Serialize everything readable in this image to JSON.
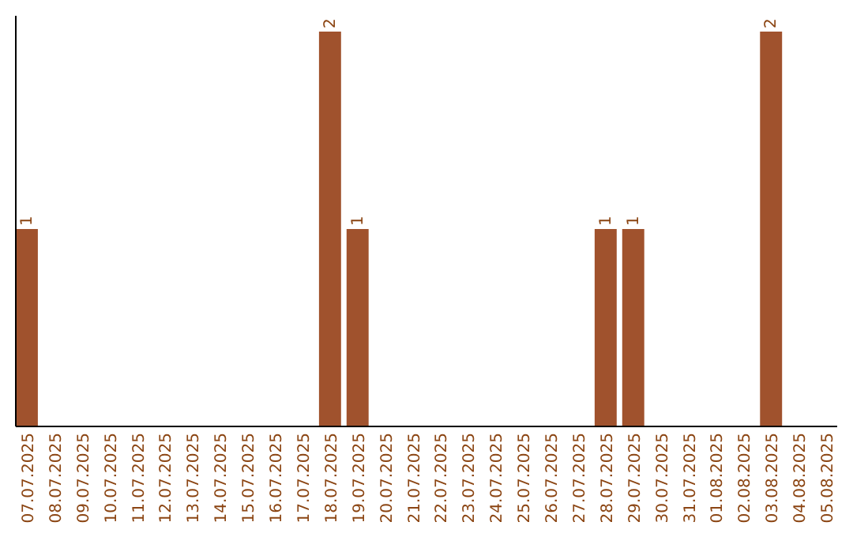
{
  "chart_data": {
    "type": "bar",
    "categories": [
      "07.07.2025",
      "08.07.2025",
      "09.07.2025",
      "10.07.2025",
      "11.07.2025",
      "12.07.2025",
      "13.07.2025",
      "14.07.2025",
      "15.07.2025",
      "16.07.2025",
      "17.07.2025",
      "18.07.2025",
      "19.07.2025",
      "20.07.2025",
      "21.07.2025",
      "22.07.2025",
      "23.07.2025",
      "24.07.2025",
      "25.07.2025",
      "26.07.2025",
      "27.07.2025",
      "28.07.2025",
      "29.07.2025",
      "30.07.2025",
      "31.07.2025",
      "01.08.2025",
      "02.08.2025",
      "03.08.2025",
      "04.08.2025",
      "05.08.2025"
    ],
    "values": [
      1,
      0,
      0,
      0,
      0,
      0,
      0,
      0,
      0,
      0,
      0,
      2,
      1,
      0,
      0,
      0,
      0,
      0,
      0,
      0,
      0,
      1,
      1,
      0,
      0,
      0,
      0,
      2,
      0,
      0
    ],
    "value_labels": [
      "1",
      null,
      null,
      null,
      null,
      null,
      null,
      null,
      null,
      null,
      null,
      "2",
      "1",
      null,
      null,
      null,
      null,
      null,
      null,
      null,
      null,
      "1",
      "1",
      null,
      null,
      null,
      null,
      "2",
      null,
      null
    ],
    "color": "#a0522d",
    "ylim": [
      0,
      2
    ],
    "tick_labels": "x"
  }
}
